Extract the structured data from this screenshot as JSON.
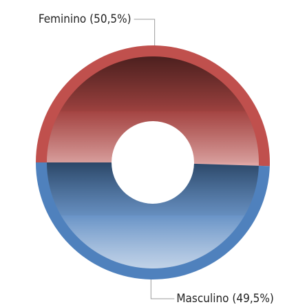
{
  "chart_data": {
    "type": "donut",
    "categories": [
      "Feminino",
      "Masculino"
    ],
    "values": [
      50.5,
      49.5
    ],
    "value_labels": [
      "(50,5%)",
      "(49,5%)"
    ],
    "colors": [
      "#c0504d",
      "#4f81bd"
    ]
  }
}
